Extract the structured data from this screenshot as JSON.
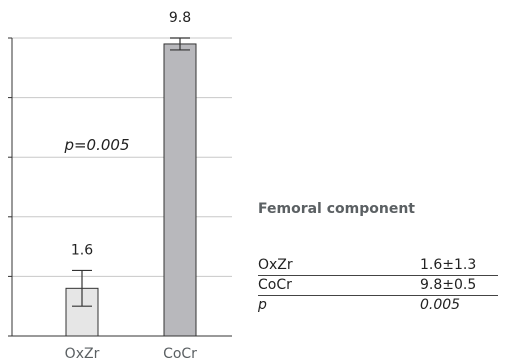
{
  "chart_data": {
    "type": "bar",
    "categories": [
      "OxZr",
      "CoCr"
    ],
    "values": [
      1.6,
      9.8
    ],
    "errors": [
      0.6,
      0.2
    ],
    "value_labels": [
      "1.6",
      "9.8"
    ],
    "annotation": "p=0.005",
    "ylim": [
      0,
      10
    ],
    "yticks": [
      0,
      2,
      4,
      6,
      8,
      10
    ],
    "grid": true,
    "colors": {
      "OxZr": "#e6e6e6",
      "CoCr": "#b8b8bc",
      "grid": "#c8c8c8",
      "axis": "#333333"
    }
  },
  "table": {
    "title": "Femoral component",
    "rows": [
      {
        "label": "OxZr",
        "value": "1.6±1.3",
        "italic": false
      },
      {
        "label": "CoCr",
        "value": "9.8±0.5",
        "italic": false
      },
      {
        "label": "p",
        "value": "0.005",
        "italic": true
      }
    ]
  }
}
